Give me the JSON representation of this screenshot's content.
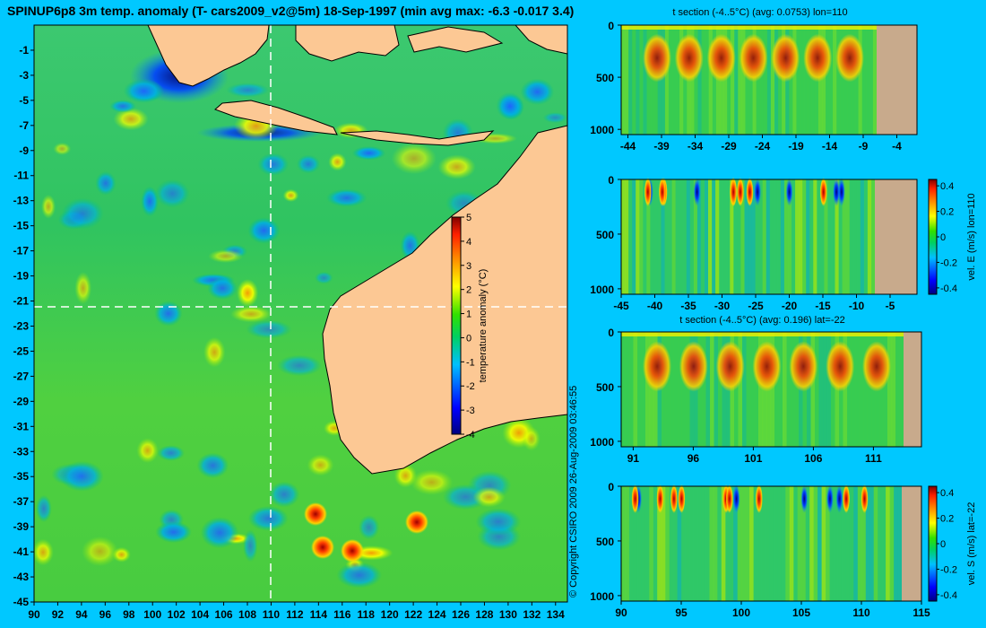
{
  "main_title": "SPINUP6p8 3m temp. anomaly (T- cars2009_v2@5m) 18-Sep-1997 (min avg max: -6.3 -0.017 3.4)",
  "copyright": "© Copyright CSIRO 2009   26-Aug-2009 03:46:55",
  "colors": {
    "background": "#00c8ff",
    "land": "#fcc894",
    "land_section": "#c8aa8c"
  },
  "chart_data": [
    {
      "type": "heatmap",
      "id": "map",
      "title": "",
      "x_ticks": [
        90,
        92,
        94,
        96,
        98,
        100,
        102,
        104,
        106,
        108,
        110,
        112,
        114,
        116,
        118,
        120,
        122,
        124,
        126,
        128,
        130,
        132,
        134
      ],
      "y_ticks": [
        -1,
        -3,
        -5,
        -7,
        -9,
        -11,
        -13,
        -15,
        -17,
        -19,
        -21,
        -23,
        -25,
        -27,
        -29,
        -31,
        -33,
        -35,
        -37,
        -39,
        -41,
        -43,
        -45
      ],
      "xlim": [
        90,
        135
      ],
      "ylim": [
        -45,
        1
      ],
      "section_lines": {
        "lon": 110,
        "lat": -22
      },
      "colorbar": {
        "label": "temperature anomaly (°C)",
        "ticks": [
          5,
          4,
          3,
          2,
          1,
          0,
          -1,
          -2,
          -3,
          -4
        ],
        "range": [
          -4,
          5
        ]
      }
    },
    {
      "type": "heatmap",
      "id": "t_section_lon",
      "title": "t section (-4..5°C) (avg: 0.0753) lon=110",
      "x_ticks": [
        -44,
        -39,
        -34,
        -29,
        -24,
        -19,
        -14,
        -9,
        -4
      ],
      "y_ticks": [
        0,
        500,
        1000
      ],
      "xlim": [
        -45,
        -1
      ],
      "ylim": [
        1050,
        0
      ]
    },
    {
      "type": "heatmap",
      "id": "vel_e_lon",
      "title": "",
      "x_ticks": [
        -45,
        -40,
        -35,
        -30,
        -25,
        -20,
        -15,
        -10,
        -5
      ],
      "y_ticks": [
        0,
        500,
        1000
      ],
      "xlim": [
        -45,
        -1
      ],
      "ylim": [
        1050,
        0
      ],
      "colorbar": {
        "label": "vel. E (m/s) lon=110",
        "ticks": [
          "0.4",
          "0.2",
          "0",
          "-0.2",
          "-0.4"
        ],
        "range": [
          -0.45,
          0.45
        ]
      }
    },
    {
      "type": "heatmap",
      "id": "t_section_lat",
      "title": "t section (-4..5°C) (avg: 0.196) lat=-22",
      "x_ticks": [
        91,
        96,
        101,
        106,
        111
      ],
      "y_ticks": [
        0,
        500,
        1000
      ],
      "xlim": [
        90,
        115
      ],
      "ylim": [
        1050,
        0
      ]
    },
    {
      "type": "heatmap",
      "id": "vel_s_lat",
      "title": "",
      "x_ticks": [
        90,
        95,
        100,
        105,
        110,
        115
      ],
      "y_ticks": [
        0,
        500,
        1000
      ],
      "xlim": [
        90,
        115
      ],
      "ylim": [
        1050,
        0
      ],
      "colorbar": {
        "label": "vel. S (m/s) lat=-22",
        "ticks": [
          "0.4",
          "0.2",
          "0",
          "-0.2",
          "-0.4"
        ],
        "range": [
          -0.45,
          0.45
        ]
      }
    }
  ]
}
